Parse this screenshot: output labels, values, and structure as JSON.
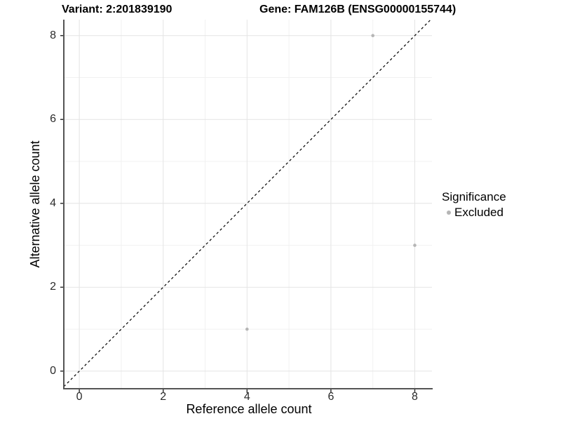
{
  "chart_data": {
    "type": "scatter",
    "title_variant": "Variant: 2:201839190",
    "title_gene": "Gene: FAM126B (ENSG00000155744)",
    "xlabel": "Reference allele count",
    "ylabel": "Alternative allele count",
    "xlim": [
      -0.37,
      8.41
    ],
    "ylim": [
      -0.42,
      8.38
    ],
    "x_ticks": [
      0,
      2,
      4,
      6,
      8
    ],
    "y_ticks": [
      0,
      2,
      4,
      6,
      8
    ],
    "x_minor_ticks": [
      1,
      3,
      5,
      7
    ],
    "y_minor_ticks": [
      1,
      3,
      5,
      7
    ],
    "grid": true,
    "reference_line": {
      "equation": "y = x",
      "style": "dashed",
      "color": "#000000"
    },
    "series": [
      {
        "name": "Excluded",
        "color": "#b5b5b5",
        "points": [
          [
            7,
            8
          ],
          [
            8,
            3
          ],
          [
            4,
            1
          ]
        ]
      }
    ],
    "legend": {
      "title": "Significance",
      "position": "right",
      "entries": [
        {
          "label": "Excluded",
          "color": "#b5b5b5"
        }
      ]
    },
    "colors": {
      "major_grid": "#e4e4e4",
      "minor_grid": "#f1f1f1",
      "axis_line": "#545454",
      "tick_mark": "#333333",
      "tick_label": "#2b2b2b"
    }
  }
}
